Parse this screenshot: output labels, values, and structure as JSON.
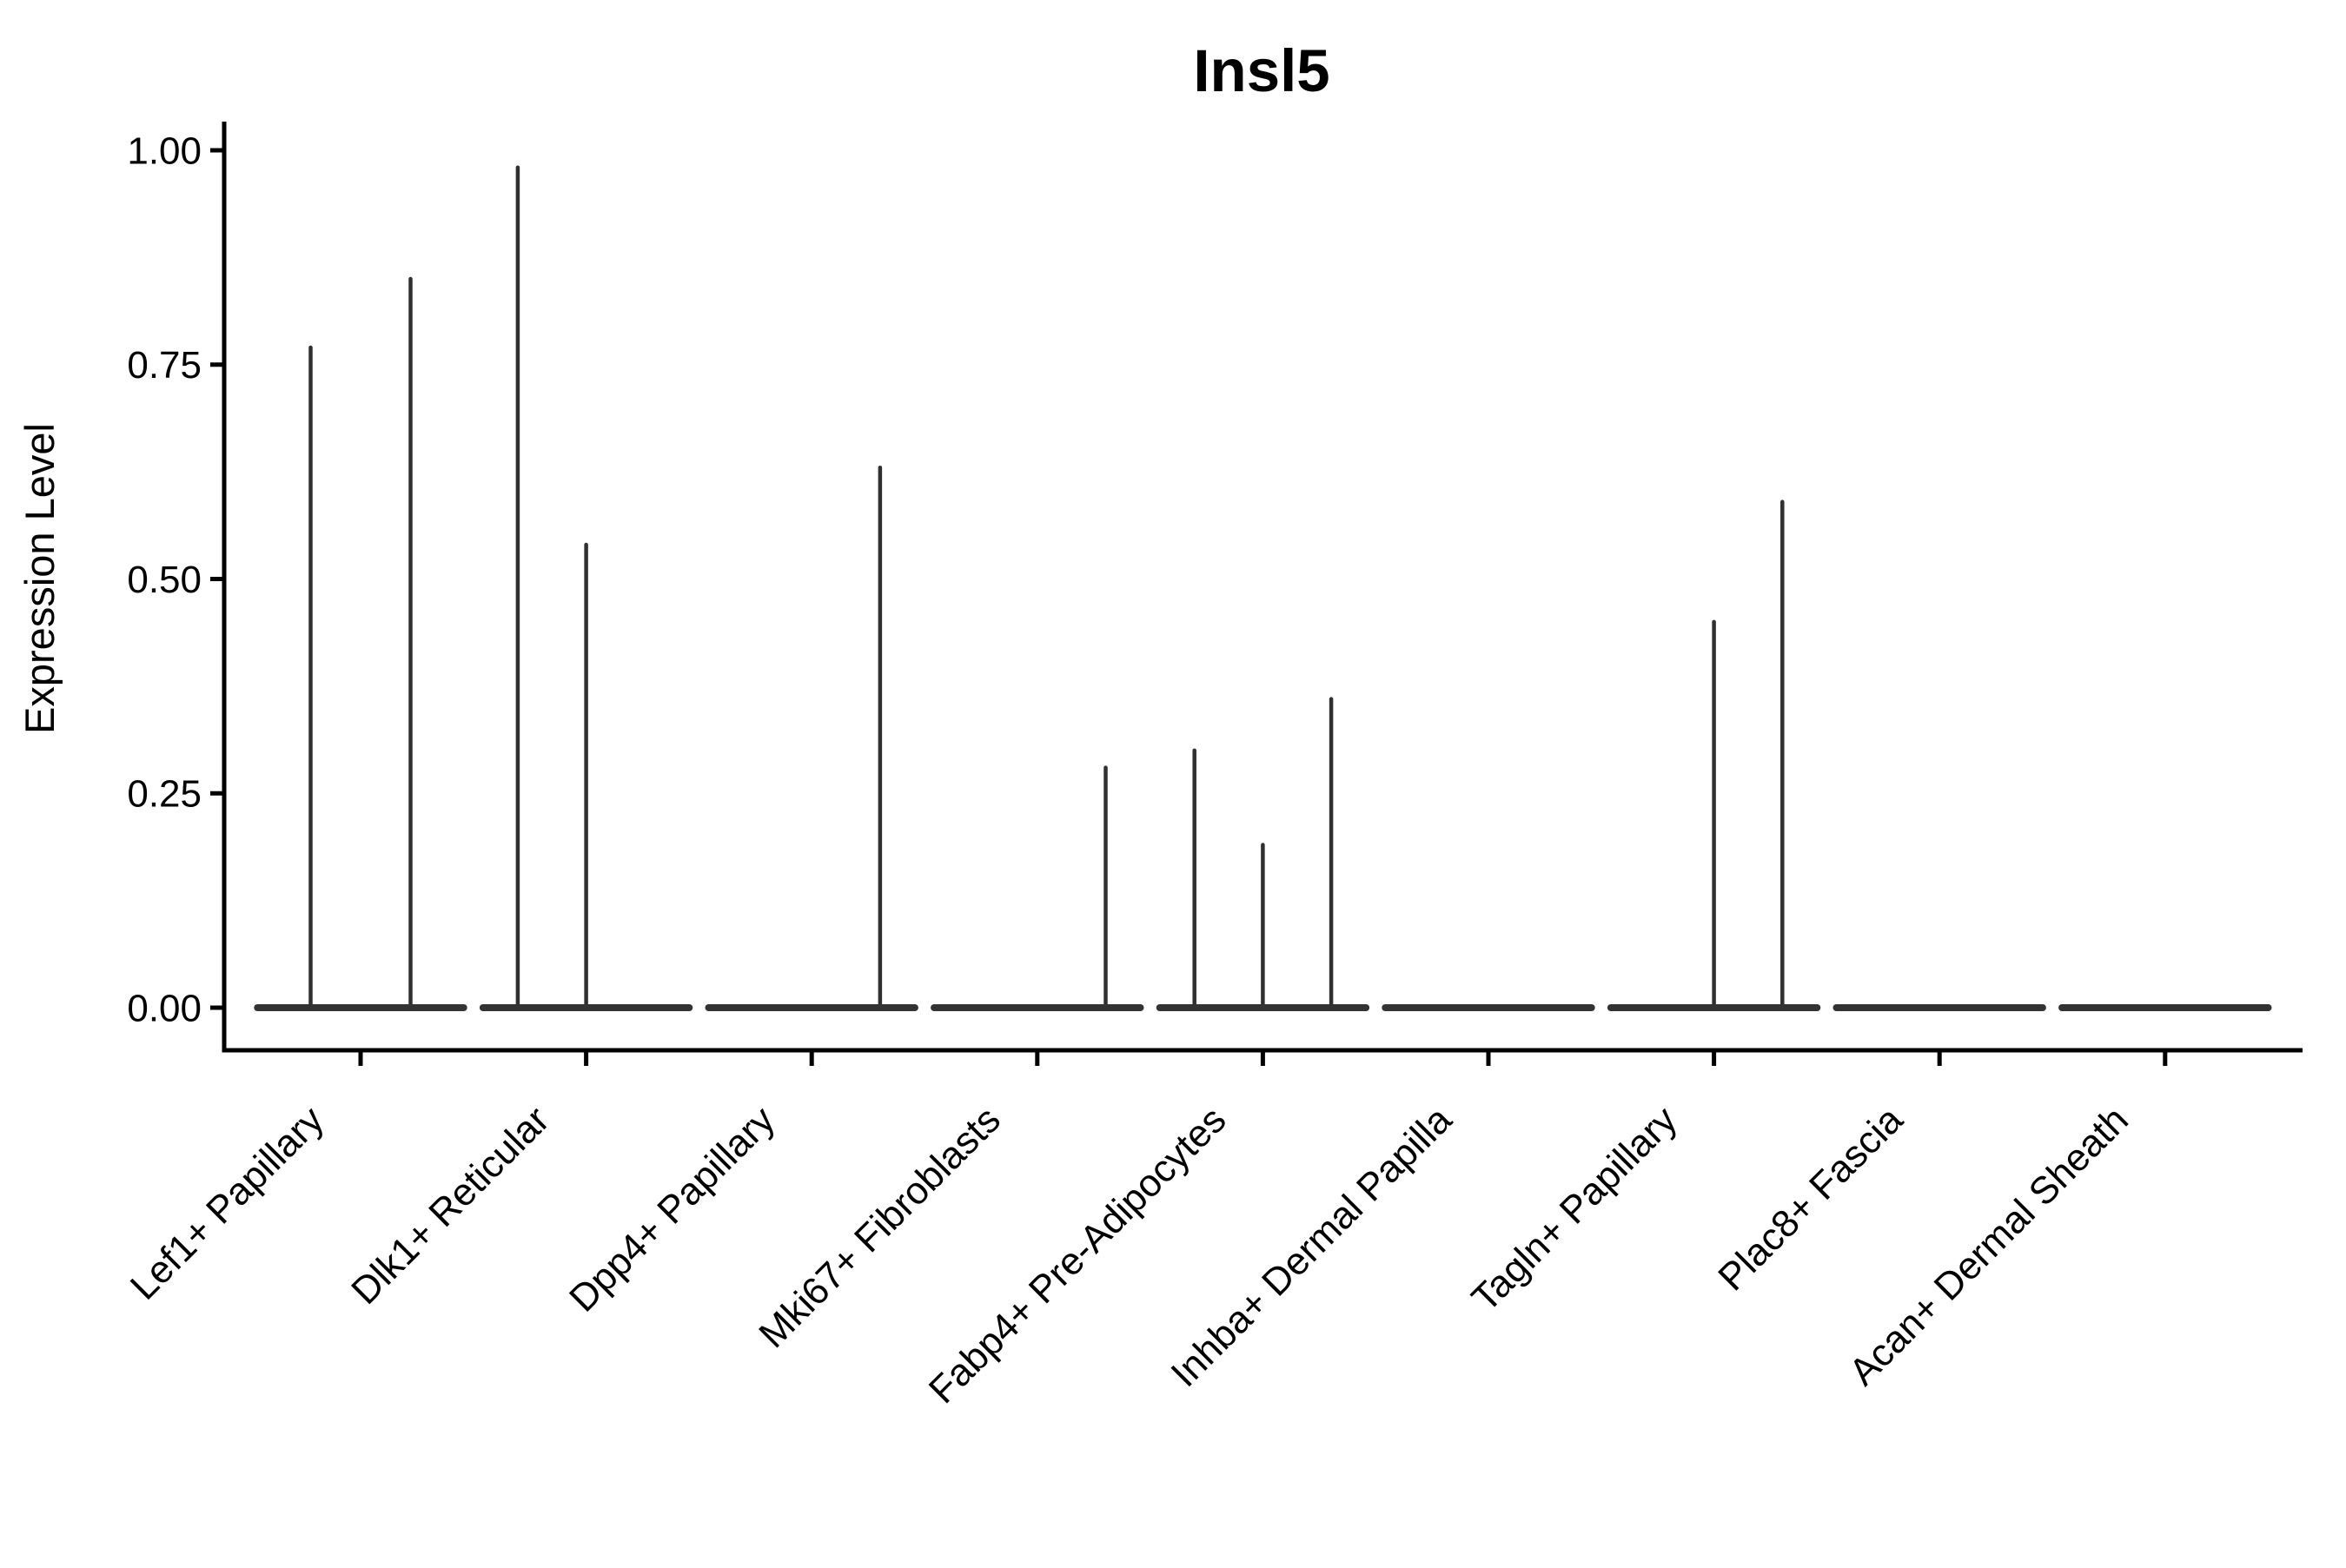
{
  "title": "Insl5",
  "y_axis": {
    "label": "Expression Level",
    "tick_labels": [
      "1.00",
      "0.75",
      "0.50",
      "0.25",
      "0.00"
    ],
    "tick_values": [
      1.0,
      0.75,
      0.5,
      0.25,
      0.0
    ]
  },
  "x_axis": {
    "categories": [
      "Lef1+ Papillary",
      "Dlk1+ Reticular",
      "Dpp4+ Papillary",
      "Mki67+ Fibroblasts",
      "Fabp4+ Pre-Adipocytes",
      "Inhba+ Dermal Papilla",
      "Tagln+ Papillary",
      "Plac8+ Fascia",
      "Acan+ Dermal Sheath"
    ]
  },
  "chart_data": {
    "type": "violin",
    "title": "Insl5",
    "xlabel": "",
    "ylabel": "Expression Level",
    "ylim": [
      0,
      1.05
    ],
    "grid": false,
    "legend": false,
    "baseline_value": 0.0,
    "categories": [
      "Lef1+ Papillary",
      "Dlk1+ Reticular",
      "Dpp4+ Papillary",
      "Mki67+ Fibroblasts",
      "Fabp4+ Pre-Adipocytes",
      "Inhba+ Dermal Papilla",
      "Tagln+ Papillary",
      "Plac8+ Fascia",
      "Acan+ Dermal Sheath"
    ],
    "violins": [
      {
        "category": "Lef1+ Papillary",
        "spikes": [
          {
            "dx": -57.5,
            "max": 0.77
          },
          {
            "dx": 57.5,
            "max": 0.85
          }
        ]
      },
      {
        "category": "Dlk1+ Reticular",
        "spikes": [
          {
            "dx": -78.7,
            "max": 0.98
          },
          {
            "dx": 0,
            "max": 0.54
          }
        ]
      },
      {
        "category": "Dpp4+ Papillary",
        "spikes": [
          {
            "dx": 78.7,
            "max": 0.63
          }
        ]
      },
      {
        "category": "Mki67+ Fibroblasts",
        "spikes": [
          {
            "dx": 78.7,
            "max": 0.28
          }
        ]
      },
      {
        "category": "Fabp4+ Pre-Adipocytes",
        "spikes": [
          {
            "dx": -78.7,
            "max": 0.3
          },
          {
            "dx": 0,
            "max": 0.19
          },
          {
            "dx": 78.7,
            "max": 0.36
          }
        ]
      },
      {
        "category": "Inhba+ Dermal Papilla",
        "spikes": []
      },
      {
        "category": "Tagln+ Papillary",
        "spikes": [
          {
            "dx": 0,
            "max": 0.45
          },
          {
            "dx": 78.7,
            "max": 0.59
          }
        ]
      },
      {
        "category": "Plac8+ Fascia",
        "spikes": []
      },
      {
        "category": "Acan+ Dermal Sheath",
        "spikes": []
      }
    ],
    "colors": {
      "violin_line": "#303030",
      "violin_baseline": "#333333",
      "axis": "#000000",
      "background": "#ffffff"
    }
  }
}
